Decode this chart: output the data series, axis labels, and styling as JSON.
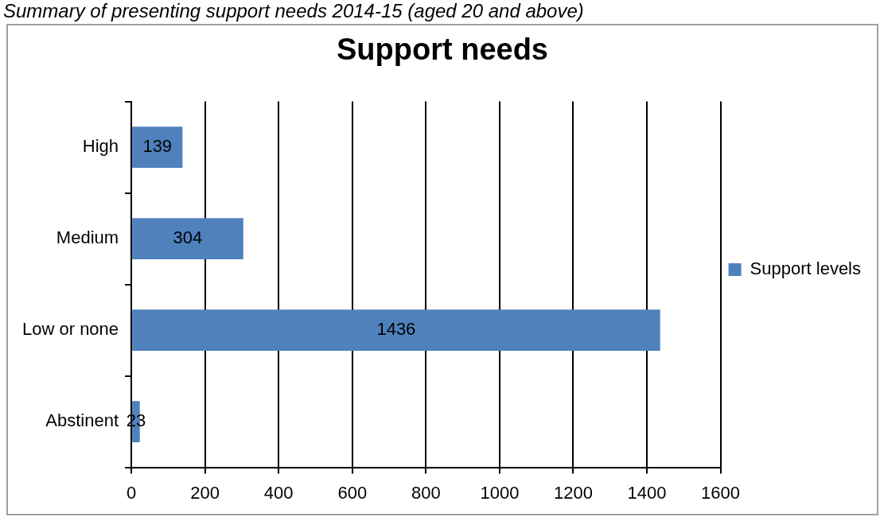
{
  "chart_data": {
    "type": "bar",
    "orientation": "horizontal",
    "title": "Support needs",
    "subtitle": "Summary of presenting support needs 2014-15 (aged 20 and above)",
    "categories": [
      "High",
      "Medium",
      "Low or none",
      "Abstinent"
    ],
    "series": [
      {
        "name": "Support levels",
        "color": "#4f81bd",
        "values": [
          139,
          304,
          1436,
          23
        ]
      }
    ],
    "xlim": [
      0,
      1600
    ],
    "xticks": [
      0,
      200,
      400,
      600,
      800,
      1000,
      1200,
      1400,
      1600
    ],
    "grid": "x",
    "legend": "right",
    "data_labels": true
  }
}
